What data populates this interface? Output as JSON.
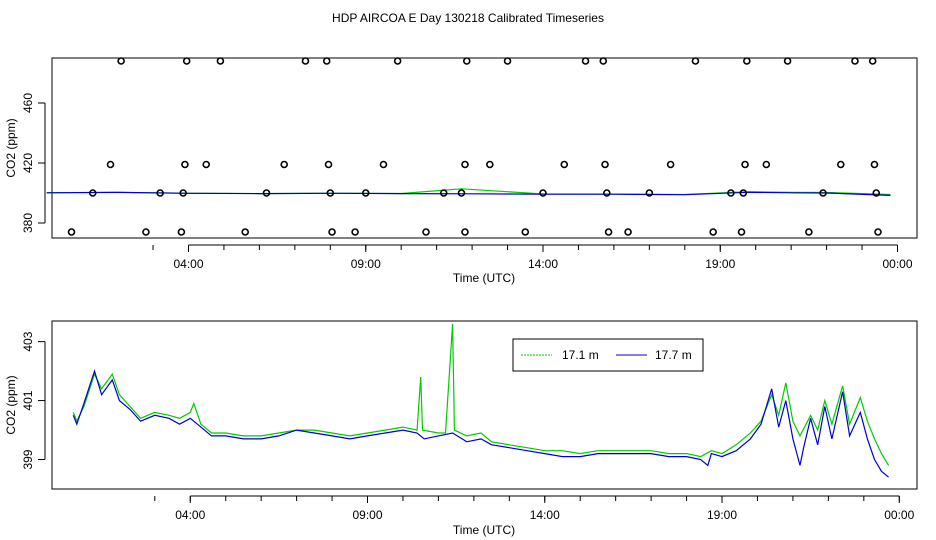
{
  "page_title": "HDP AIRCOA E  Day 130218  Calibrated Timeseries",
  "chart_data": [
    {
      "type": "scatter",
      "xlabel": "Time (UTC)",
      "ylabel": "CO2 (ppm)",
      "x_ticks": [
        {
          "hour": 4,
          "label": "04:00"
        },
        {
          "hour": 9,
          "label": "09:00"
        },
        {
          "hour": 14,
          "label": "14:00"
        },
        {
          "hour": 19,
          "label": "19:00"
        },
        {
          "hour": 24,
          "label": "00:00"
        }
      ],
      "y_ticks": [
        380,
        420,
        460
      ],
      "xlim": [
        0.15,
        24.55
      ],
      "ylim": [
        370,
        490
      ],
      "series": [
        {
          "name": "17.1 m",
          "color": "#00cc00",
          "points": [
            [
              0,
              400.2
            ],
            [
              2,
              400.5
            ],
            [
              4,
              399.9
            ],
            [
              6,
              399.6
            ],
            [
              8,
              399.9
            ],
            [
              10,
              399.7
            ],
            [
              11.7,
              402.8
            ],
            [
              14,
              399.3
            ],
            [
              16,
              399.2
            ],
            [
              18,
              399.0
            ],
            [
              19.8,
              400.9
            ],
            [
              21,
              400.4
            ],
            [
              22,
              400.3
            ],
            [
              23.8,
              399.0
            ]
          ]
        },
        {
          "name": "17.7 m",
          "color": "#0000cc",
          "points": [
            [
              0,
              400.1
            ],
            [
              2,
              400.4
            ],
            [
              4,
              399.8
            ],
            [
              6,
              399.6
            ],
            [
              8,
              399.8
            ],
            [
              10,
              399.6
            ],
            [
              12,
              399.5
            ],
            [
              14,
              399.2
            ],
            [
              16,
              399.2
            ],
            [
              18,
              398.9
            ],
            [
              19.8,
              400.5
            ],
            [
              21,
              400.1
            ],
            [
              22,
              400.0
            ],
            [
              23.8,
              398.4
            ]
          ]
        }
      ],
      "markers": [
        [
          0.7,
          374
        ],
        [
          1.3,
          400
        ],
        [
          1.8,
          419
        ],
        [
          2.1,
          488
        ],
        [
          2.8,
          374
        ],
        [
          3.2,
          400
        ],
        [
          3.8,
          374
        ],
        [
          3.85,
          400
        ],
        [
          3.9,
          419
        ],
        [
          3.95,
          488
        ],
        [
          4.5,
          419
        ],
        [
          4.9,
          488
        ],
        [
          5.6,
          374
        ],
        [
          6.2,
          400
        ],
        [
          6.7,
          419
        ],
        [
          7.3,
          488
        ],
        [
          7.9,
          488
        ],
        [
          7.95,
          419
        ],
        [
          8.0,
          400
        ],
        [
          8.05,
          374
        ],
        [
          8.7,
          374
        ],
        [
          9.0,
          400
        ],
        [
          9.5,
          419
        ],
        [
          9.9,
          488
        ],
        [
          10.7,
          374
        ],
        [
          11.2,
          400
        ],
        [
          11.7,
          400
        ],
        [
          11.8,
          419
        ],
        [
          11.85,
          488
        ],
        [
          11.8,
          374
        ],
        [
          12.5,
          419
        ],
        [
          13.0,
          488
        ],
        [
          13.5,
          374
        ],
        [
          14.0,
          400
        ],
        [
          14.6,
          419
        ],
        [
          15.2,
          488
        ],
        [
          15.7,
          488
        ],
        [
          15.75,
          419
        ],
        [
          15.8,
          400
        ],
        [
          15.85,
          374
        ],
        [
          16.4,
          374
        ],
        [
          17.0,
          400
        ],
        [
          17.6,
          419
        ],
        [
          18.3,
          488
        ],
        [
          18.8,
          374
        ],
        [
          19.3,
          400
        ],
        [
          19.6,
          374
        ],
        [
          19.65,
          400
        ],
        [
          19.7,
          419
        ],
        [
          19.75,
          488
        ],
        [
          20.3,
          419
        ],
        [
          20.9,
          488
        ],
        [
          21.5,
          374
        ],
        [
          21.9,
          400
        ],
        [
          22.4,
          419
        ],
        [
          22.8,
          488
        ],
        [
          23.3,
          488
        ],
        [
          23.35,
          419
        ],
        [
          23.4,
          400
        ],
        [
          23.45,
          374
        ]
      ]
    },
    {
      "type": "line",
      "xlabel": "Time (UTC)",
      "ylabel": "CO2 (ppm)",
      "x_ticks": [
        {
          "hour": 4,
          "label": "04:00"
        },
        {
          "hour": 9,
          "label": "09:00"
        },
        {
          "hour": 14,
          "label": "14:00"
        },
        {
          "hour": 19,
          "label": "19:00"
        },
        {
          "hour": 24,
          "label": "00:00"
        }
      ],
      "y_ticks": [
        399,
        401,
        403
      ],
      "xlim": [
        0.1,
        24.5
      ],
      "ylim": [
        398.0,
        403.7
      ],
      "legend": "top-center",
      "series": [
        {
          "name": "17.1 m",
          "color": "#00cc00",
          "points": [
            [
              0.7,
              400.6
            ],
            [
              0.8,
              400.3
            ],
            [
              1.0,
              400.8
            ],
            [
              1.3,
              401.9
            ],
            [
              1.5,
              401.4
            ],
            [
              1.8,
              401.9
            ],
            [
              2.0,
              401.2
            ],
            [
              2.3,
              400.8
            ],
            [
              2.6,
              400.4
            ],
            [
              3.0,
              400.6
            ],
            [
              3.4,
              400.5
            ],
            [
              3.7,
              400.4
            ],
            [
              4.0,
              400.6
            ],
            [
              4.1,
              400.9
            ],
            [
              4.3,
              400.2
            ],
            [
              4.6,
              399.9
            ],
            [
              5.0,
              399.9
            ],
            [
              5.5,
              399.8
            ],
            [
              6.0,
              399.8
            ],
            [
              6.5,
              399.9
            ],
            [
              7.0,
              400.0
            ],
            [
              7.5,
              400.0
            ],
            [
              8.0,
              399.9
            ],
            [
              8.5,
              399.8
            ],
            [
              9.0,
              399.9
            ],
            [
              9.5,
              400.0
            ],
            [
              10.0,
              400.1
            ],
            [
              10.4,
              400.0
            ],
            [
              10.5,
              401.8
            ],
            [
              10.55,
              400.0
            ],
            [
              11.0,
              399.9
            ],
            [
              11.2,
              399.9
            ],
            [
              11.4,
              403.6
            ],
            [
              11.45,
              400.0
            ],
            [
              11.8,
              399.8
            ],
            [
              12.2,
              399.9
            ],
            [
              12.5,
              399.6
            ],
            [
              13.0,
              399.5
            ],
            [
              13.5,
              399.4
            ],
            [
              14.0,
              399.3
            ],
            [
              14.5,
              399.3
            ],
            [
              15.0,
              399.2
            ],
            [
              15.5,
              399.3
            ],
            [
              16.0,
              399.3
            ],
            [
              16.5,
              399.3
            ],
            [
              17.0,
              399.3
            ],
            [
              17.5,
              399.2
            ],
            [
              18.0,
              399.2
            ],
            [
              18.4,
              399.1
            ],
            [
              18.7,
              399.3
            ],
            [
              19.0,
              399.2
            ],
            [
              19.4,
              399.5
            ],
            [
              19.8,
              399.9
            ],
            [
              20.1,
              400.3
            ],
            [
              20.4,
              401.2
            ],
            [
              20.6,
              400.5
            ],
            [
              20.8,
              401.6
            ],
            [
              21.0,
              400.3
            ],
            [
              21.2,
              399.8
            ],
            [
              21.5,
              400.5
            ],
            [
              21.7,
              400.0
            ],
            [
              21.9,
              401.0
            ],
            [
              22.1,
              400.2
            ],
            [
              22.4,
              401.5
            ],
            [
              22.6,
              400.2
            ],
            [
              22.9,
              401.1
            ],
            [
              23.1,
              400.3
            ],
            [
              23.3,
              399.7
            ],
            [
              23.5,
              399.2
            ],
            [
              23.7,
              398.8
            ]
          ]
        },
        {
          "name": "17.7 m",
          "color": "#0000cc",
          "points": [
            [
              0.7,
              400.5
            ],
            [
              0.8,
              400.2
            ],
            [
              1.0,
              400.9
            ],
            [
              1.3,
              402.0
            ],
            [
              1.5,
              401.2
            ],
            [
              1.8,
              401.7
            ],
            [
              2.0,
              401.0
            ],
            [
              2.3,
              400.7
            ],
            [
              2.6,
              400.3
            ],
            [
              3.0,
              400.5
            ],
            [
              3.4,
              400.4
            ],
            [
              3.7,
              400.2
            ],
            [
              4.0,
              400.4
            ],
            [
              4.3,
              400.1
            ],
            [
              4.6,
              399.8
            ],
            [
              5.0,
              399.8
            ],
            [
              5.5,
              399.7
            ],
            [
              6.0,
              399.7
            ],
            [
              6.5,
              399.8
            ],
            [
              7.0,
              400.0
            ],
            [
              7.5,
              399.9
            ],
            [
              8.0,
              399.8
            ],
            [
              8.5,
              399.7
            ],
            [
              9.0,
              399.8
            ],
            [
              9.5,
              399.9
            ],
            [
              10.0,
              400.0
            ],
            [
              10.4,
              399.9
            ],
            [
              10.6,
              399.7
            ],
            [
              11.0,
              399.8
            ],
            [
              11.4,
              399.9
            ],
            [
              11.8,
              399.6
            ],
            [
              12.2,
              399.7
            ],
            [
              12.5,
              399.5
            ],
            [
              13.0,
              399.4
            ],
            [
              13.5,
              399.3
            ],
            [
              14.0,
              399.2
            ],
            [
              14.5,
              399.1
            ],
            [
              15.0,
              399.1
            ],
            [
              15.5,
              399.2
            ],
            [
              16.0,
              399.2
            ],
            [
              16.5,
              399.2
            ],
            [
              17.0,
              399.2
            ],
            [
              17.5,
              399.1
            ],
            [
              18.0,
              399.1
            ],
            [
              18.4,
              399.0
            ],
            [
              18.6,
              398.8
            ],
            [
              18.7,
              399.2
            ],
            [
              19.0,
              399.1
            ],
            [
              19.4,
              399.3
            ],
            [
              19.8,
              399.7
            ],
            [
              20.1,
              400.2
            ],
            [
              20.4,
              401.4
            ],
            [
              20.6,
              400.1
            ],
            [
              20.8,
              401.0
            ],
            [
              21.0,
              399.7
            ],
            [
              21.2,
              398.8
            ],
            [
              21.3,
              399.4
            ],
            [
              21.5,
              400.4
            ],
            [
              21.7,
              399.5
            ],
            [
              21.9,
              400.8
            ],
            [
              22.1,
              399.7
            ],
            [
              22.4,
              401.3
            ],
            [
              22.6,
              399.8
            ],
            [
              22.9,
              400.6
            ],
            [
              23.1,
              399.7
            ],
            [
              23.3,
              399.0
            ],
            [
              23.5,
              398.6
            ],
            [
              23.7,
              398.4
            ]
          ]
        }
      ]
    }
  ]
}
